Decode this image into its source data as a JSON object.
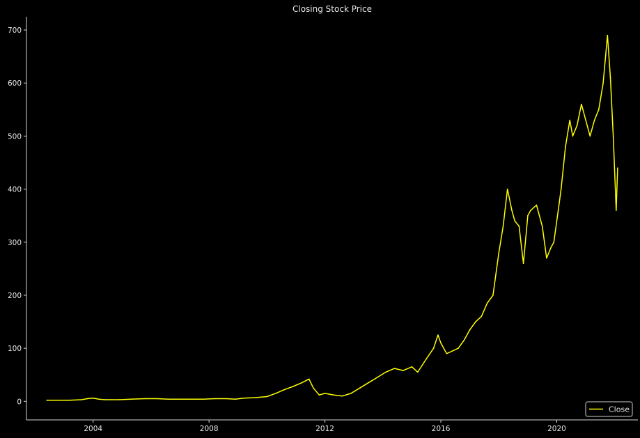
{
  "chart_data": {
    "type": "line",
    "title": "Closing Stock Price",
    "xlabel": "",
    "ylabel": "",
    "xlim": [
      2001.7,
      2022.8
    ],
    "ylim": [
      -35,
      725
    ],
    "x_ticks": [
      2004,
      2008,
      2012,
      2016,
      2020
    ],
    "y_ticks": [
      0,
      100,
      200,
      300,
      400,
      500,
      600,
      700
    ],
    "grid": false,
    "legend": {
      "placement": "bottom-right"
    },
    "series": [
      {
        "name": "Close",
        "color": "#ffff00",
        "x": [
          2002.4,
          2002.8,
          2003.2,
          2003.6,
          2003.8,
          2004.0,
          2004.2,
          2004.4,
          2004.6,
          2004.9,
          2005.3,
          2005.8,
          2006.2,
          2006.6,
          2007.0,
          2007.4,
          2007.8,
          2008.2,
          2008.6,
          2008.9,
          2009.2,
          2009.6,
          2010.0,
          2010.3,
          2010.6,
          2010.9,
          2011.2,
          2011.45,
          2011.6,
          2011.8,
          2012.0,
          2012.3,
          2012.6,
          2012.9,
          2013.2,
          2013.5,
          2013.8,
          2014.1,
          2014.4,
          2014.7,
          2015.0,
          2015.2,
          2015.5,
          2015.75,
          2015.9,
          2016.0,
          2016.2,
          2016.4,
          2016.6,
          2016.8,
          2017.0,
          2017.2,
          2017.4,
          2017.6,
          2017.8,
          2018.0,
          2018.15,
          2018.3,
          2018.45,
          2018.55,
          2018.7,
          2018.85,
          2019.0,
          2019.1,
          2019.3,
          2019.5,
          2019.65,
          2019.8,
          2019.9,
          2020.05,
          2020.15,
          2020.3,
          2020.45,
          2020.55,
          2020.7,
          2020.85,
          2021.0,
          2021.15,
          2021.3,
          2021.45,
          2021.6,
          2021.75,
          2021.85,
          2021.95,
          2022.05,
          2022.1
        ],
        "values": [
          2,
          2,
          2,
          3,
          5,
          6,
          4,
          3,
          3,
          3,
          4,
          5,
          5,
          4,
          4,
          4,
          4,
          5,
          5,
          4,
          6,
          7,
          9,
          15,
          22,
          28,
          35,
          42,
          25,
          12,
          15,
          12,
          10,
          15,
          25,
          35,
          45,
          55,
          62,
          58,
          65,
          55,
          80,
          100,
          125,
          110,
          90,
          95,
          100,
          115,
          135,
          150,
          160,
          185,
          200,
          280,
          330,
          400,
          360,
          340,
          330,
          260,
          350,
          360,
          370,
          330,
          270,
          290,
          300,
          360,
          400,
          480,
          530,
          500,
          520,
          560,
          530,
          500,
          530,
          550,
          600,
          690,
          610,
          500,
          360,
          440
        ]
      }
    ]
  }
}
